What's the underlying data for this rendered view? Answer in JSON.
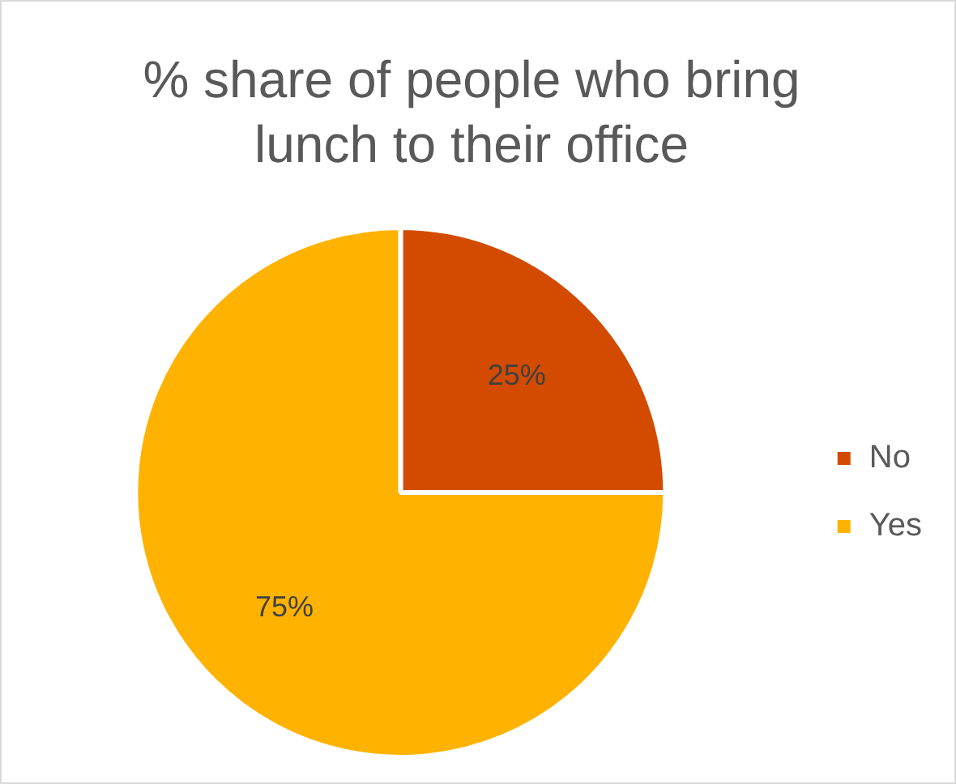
{
  "chart_data": {
    "type": "pie",
    "title": "% share of people who bring lunch to their office",
    "categories": [
      "No",
      "Yes"
    ],
    "values": [
      25,
      75
    ],
    "colors": [
      "#d24b00",
      "#ffb300"
    ],
    "value_labels": [
      "25%",
      "75%"
    ],
    "legend": "right"
  }
}
